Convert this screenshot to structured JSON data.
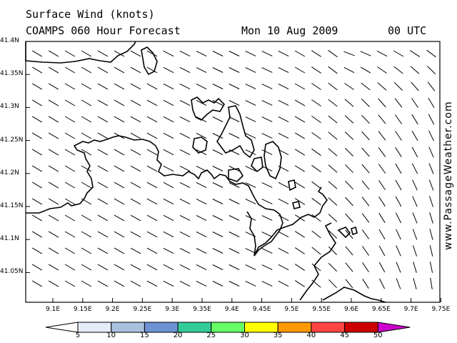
{
  "header": {
    "title": "Surface Wind (knots)",
    "model": "COAMPS 060 Hour Forecast",
    "date": "Mon 10 Aug 2009",
    "time": "00 UTC"
  },
  "axes": {
    "lat_labels": [
      "41.4N",
      "41.35N",
      "41.3N",
      "41.25N",
      "41.2N",
      "41.15N",
      "41.1N",
      "41.05N"
    ],
    "lon_labels": [
      "9.1E",
      "9.15E",
      "9.2E",
      "9.25E",
      "9.3E",
      "9.35E",
      "9.4E",
      "9.45E",
      "9.5E",
      "9.55E",
      "9.6E",
      "9.65E",
      "9.7E",
      "9.75E"
    ]
  },
  "colorbar": {
    "labels": [
      "5",
      "10",
      "15",
      "20",
      "25",
      "30",
      "35",
      "40",
      "45",
      "50"
    ],
    "colors": [
      "#ffffff",
      "#e4ecf8",
      "#a9c1df",
      "#6d93d4",
      "#33cc99",
      "#66ff66",
      "#ffff00",
      "#ff9900",
      "#ff4444",
      "#cc0000",
      "#cc00cc"
    ]
  },
  "watermark": "www.PassageWeather.com"
}
